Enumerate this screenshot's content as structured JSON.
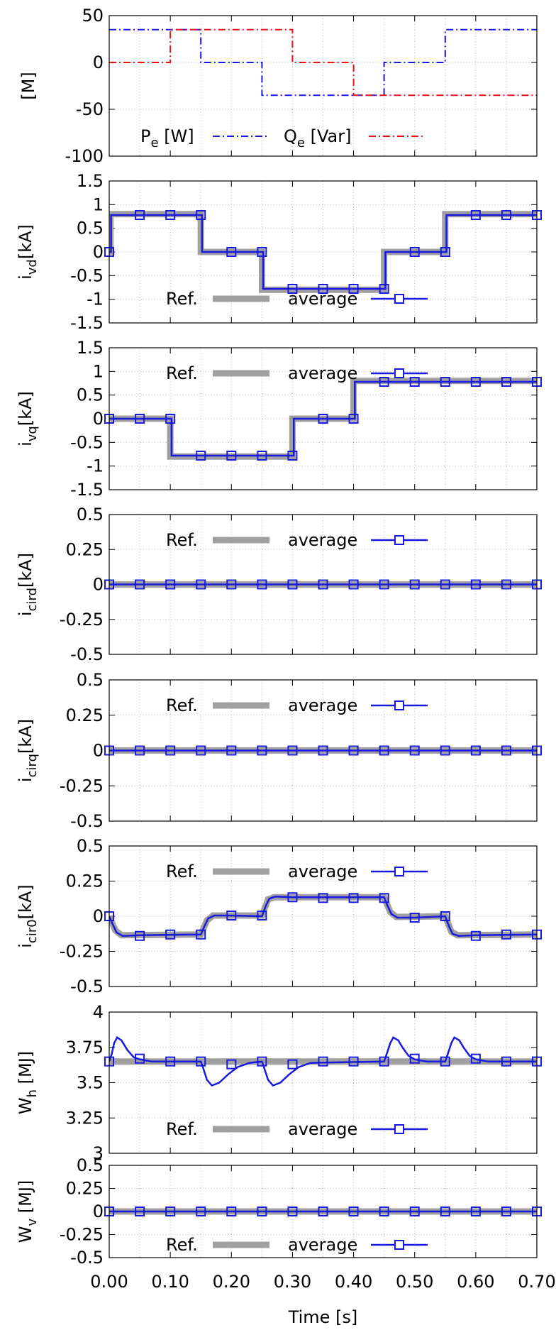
{
  "chart_data": {
    "type": "line",
    "x_title": "Time [s]",
    "x_ticks": [
      "0.00",
      "0.10",
      "0.20",
      "0.30",
      "0.40",
      "0.50",
      "0.60",
      "0.70"
    ],
    "xlim": [
      0,
      0.7
    ],
    "marker_x": [
      0,
      0.05,
      0.1,
      0.15,
      0.2,
      0.25,
      0.3,
      0.35,
      0.4,
      0.45,
      0.5,
      0.55,
      0.6,
      0.65,
      0.7
    ],
    "colors": {
      "blue": "#1a1adf",
      "red": "#e8141a",
      "gray": "#a0a0a0",
      "grid": "#b8b8b8"
    },
    "panels": [
      {
        "id": "power",
        "ylabel": {
          "main": "[M]",
          "sub": ""
        },
        "ylim": [
          -100,
          50
        ],
        "yticks": [
          "50",
          "0",
          "-50",
          "-100"
        ],
        "ytick_values": [
          50,
          0,
          -50,
          -100
        ],
        "legend": {
          "position": "bottom-left",
          "items": [
            "P_e [W]",
            "Q_e [Var]"
          ]
        },
        "legend_parts": [
          {
            "main": "P",
            "sub": "e",
            "rest": " [W]"
          },
          {
            "main": "Q",
            "sub": "e",
            "rest": " [Var]"
          }
        ],
        "series": [
          {
            "name": "P_e [W]",
            "color": "blue",
            "style": "dash-dot",
            "x": [
              0,
              0.15,
              0.15,
              0.25,
              0.25,
              0.45,
              0.45,
              0.55,
              0.55,
              0.7
            ],
            "values": [
              35,
              35,
              0,
              0,
              -35,
              -35,
              0,
              0,
              35,
              35
            ]
          },
          {
            "name": "Q_e [Var]",
            "color": "red",
            "style": "dash-dot",
            "x": [
              0,
              0.1,
              0.1,
              0.3,
              0.3,
              0.4,
              0.4,
              0.7
            ],
            "values": [
              0,
              0,
              35,
              35,
              0,
              0,
              -35,
              -35
            ]
          }
        ]
      },
      {
        "id": "ivd",
        "ylabel": {
          "main": "i",
          "sub": "vd",
          "rest": "[kA]"
        },
        "ylim": [
          -1.5,
          1.5
        ],
        "yticks": [
          "1.5",
          "1",
          "0.5",
          "0",
          "-0.5",
          "-1",
          "-1.5"
        ],
        "ytick_values": [
          1.5,
          1,
          0.5,
          0,
          -0.5,
          -1,
          -1.5
        ],
        "legend": {
          "position": "bottom-center",
          "items": [
            "Ref.",
            "average"
          ]
        },
        "ref": {
          "x": [
            0,
            0.002,
            0.002,
            0.15,
            0.15,
            0.25,
            0.25,
            0.45,
            0.45,
            0.55,
            0.55,
            0.7
          ],
          "values": [
            0,
            0,
            0.8,
            0.8,
            0,
            0,
            -0.8,
            -0.8,
            0,
            0,
            0.8,
            0.8
          ]
        },
        "average": {
          "x": [
            0,
            0.003,
            0.003,
            0.152,
            0.152,
            0.252,
            0.252,
            0.452,
            0.452,
            0.552,
            0.552,
            0.7
          ],
          "values": [
            0,
            0,
            0.78,
            0.78,
            0,
            0,
            -0.78,
            -0.78,
            0,
            0,
            0.78,
            0.78
          ]
        },
        "markers": [
          0,
          0.78,
          0.78,
          0.78,
          0,
          0,
          -0.78,
          -0.78,
          -0.78,
          -0.78,
          0,
          0,
          0.78,
          0.78,
          0.78
        ]
      },
      {
        "id": "ivq",
        "ylabel": {
          "main": "i",
          "sub": "vq",
          "rest": "[kA]"
        },
        "ylim": [
          -1.5,
          1.5
        ],
        "yticks": [
          "1.5",
          "1",
          "0.5",
          "0",
          "-0.5",
          "-1",
          "-1.5"
        ],
        "ytick_values": [
          1.5,
          1,
          0.5,
          0,
          -0.5,
          -1,
          -1.5
        ],
        "legend": {
          "position": "top-center",
          "items": [
            "Ref.",
            "average"
          ]
        },
        "ref": {
          "x": [
            0,
            0.1,
            0.1,
            0.3,
            0.3,
            0.4,
            0.4,
            0.7
          ],
          "values": [
            0,
            0,
            -0.8,
            -0.8,
            0,
            0,
            0.8,
            0.8
          ]
        },
        "average": {
          "x": [
            0,
            0.102,
            0.102,
            0.302,
            0.302,
            0.402,
            0.402,
            0.7
          ],
          "values": [
            0,
            0,
            -0.78,
            -0.78,
            0,
            0,
            0.78,
            0.78
          ]
        },
        "markers": [
          0,
          0,
          0,
          -0.78,
          -0.78,
          -0.78,
          -0.78,
          0,
          0,
          0.78,
          0.78,
          0.78,
          0.78,
          0.78,
          0.78
        ]
      },
      {
        "id": "icird",
        "ylabel": {
          "main": "i",
          "sub": "cird",
          "rest": "[kA]"
        },
        "ylim": [
          -0.5,
          0.5
        ],
        "yticks": [
          "0.5",
          "0.25",
          "0",
          "-0.25",
          "-0.5"
        ],
        "ytick_values": [
          0.5,
          0.25,
          0,
          -0.25,
          -0.5
        ],
        "legend": {
          "position": "top-center",
          "items": [
            "Ref.",
            "average"
          ]
        },
        "ref": {
          "x": [
            0,
            0.7
          ],
          "values": [
            0,
            0
          ]
        },
        "average": {
          "x": [
            0,
            0.7
          ],
          "values": [
            0,
            0
          ]
        },
        "markers": [
          0,
          0,
          0,
          0,
          0,
          0,
          0,
          0,
          0,
          0,
          0,
          0,
          0,
          0,
          0
        ]
      },
      {
        "id": "icirq",
        "ylabel": {
          "main": "i",
          "sub": "cirq",
          "rest": "[kA]"
        },
        "ylim": [
          -0.5,
          0.5
        ],
        "yticks": [
          "0.5",
          "0.25",
          "0",
          "-0.25",
          "-0.5"
        ],
        "ytick_values": [
          0.5,
          0.25,
          0,
          -0.25,
          -0.5
        ],
        "legend": {
          "position": "top-center",
          "items": [
            "Ref.",
            "average"
          ]
        },
        "ref": {
          "x": [
            0,
            0.7
          ],
          "values": [
            0,
            0
          ]
        },
        "average": {
          "x": [
            0,
            0.7
          ],
          "values": [
            0,
            0
          ]
        },
        "markers": [
          0,
          0,
          0,
          0,
          0,
          0,
          0,
          0,
          0,
          0,
          0,
          0,
          0,
          0,
          0
        ]
      },
      {
        "id": "icir0",
        "ylabel": {
          "main": "i",
          "sub": "cir0",
          "rest": "[kA]"
        },
        "ylim": [
          -0.5,
          0.5
        ],
        "yticks": [
          "0.5",
          "0.25",
          "0",
          "-0.25",
          "-0.5"
        ],
        "ytick_values": [
          0.5,
          0.25,
          0,
          -0.25,
          -0.5
        ],
        "legend": {
          "position": "top-center",
          "items": [
            "Ref.",
            "average"
          ]
        },
        "ref": {
          "x": [
            0,
            0.01,
            0.02,
            0.15,
            0.16,
            0.17,
            0.25,
            0.26,
            0.27,
            0.45,
            0.46,
            0.47,
            0.55,
            0.56,
            0.57,
            0.7
          ],
          "values": [
            0,
            -0.1,
            -0.135,
            -0.13,
            -0.03,
            0.005,
            0.005,
            0.12,
            0.135,
            0.135,
            0.03,
            -0.005,
            0,
            -0.11,
            -0.135,
            -0.13
          ]
        },
        "average": {
          "x": [
            0,
            0.005,
            0.012,
            0.022,
            0.05,
            0.15,
            0.156,
            0.162,
            0.172,
            0.2,
            0.25,
            0.256,
            0.262,
            0.272,
            0.3,
            0.45,
            0.456,
            0.462,
            0.472,
            0.5,
            0.55,
            0.556,
            0.562,
            0.572,
            0.6,
            0.7
          ],
          "values": [
            0,
            -0.05,
            -0.115,
            -0.14,
            -0.135,
            -0.13,
            -0.07,
            -0.015,
            0.005,
            0.005,
            0,
            0.07,
            0.125,
            0.14,
            0.135,
            0.135,
            0.07,
            0.015,
            -0.01,
            -0.01,
            0,
            -0.07,
            -0.125,
            -0.14,
            -0.135,
            -0.13
          ]
        },
        "markers": [
          0,
          -0.14,
          -0.13,
          -0.13,
          0.005,
          0.005,
          0.135,
          0.13,
          0.13,
          0.13,
          -0.01,
          0,
          -0.14,
          -0.13,
          -0.13
        ]
      },
      {
        "id": "wh",
        "ylabel": {
          "main": "W",
          "sub": "h",
          "rest": " [MJ]"
        },
        "ylim": [
          3,
          4
        ],
        "yticks": [
          "4",
          "3.75",
          "3.5",
          "3.25",
          "3"
        ],
        "ytick_values": [
          4,
          3.75,
          3.5,
          3.25,
          3
        ],
        "legend": {
          "position": "bottom-center",
          "items": [
            "Ref.",
            "average"
          ]
        },
        "ref": {
          "x": [
            0,
            0.7
          ],
          "values": [
            3.65,
            3.65
          ]
        },
        "average": {
          "x": [
            0,
            0.004,
            0.008,
            0.013,
            0.02,
            0.03,
            0.04,
            0.05,
            0.07,
            0.15,
            0.154,
            0.16,
            0.168,
            0.18,
            0.195,
            0.21,
            0.23,
            0.25,
            0.254,
            0.26,
            0.268,
            0.28,
            0.295,
            0.31,
            0.33,
            0.45,
            0.454,
            0.46,
            0.465,
            0.473,
            0.48,
            0.49,
            0.5,
            0.52,
            0.55,
            0.554,
            0.56,
            0.565,
            0.573,
            0.58,
            0.59,
            0.6,
            0.62,
            0.7
          ],
          "values": [
            3.65,
            3.7,
            3.78,
            3.82,
            3.8,
            3.73,
            3.68,
            3.665,
            3.65,
            3.65,
            3.6,
            3.52,
            3.48,
            3.5,
            3.56,
            3.61,
            3.64,
            3.65,
            3.6,
            3.52,
            3.48,
            3.5,
            3.56,
            3.61,
            3.64,
            3.65,
            3.7,
            3.78,
            3.82,
            3.8,
            3.75,
            3.69,
            3.665,
            3.65,
            3.65,
            3.7,
            3.78,
            3.82,
            3.8,
            3.75,
            3.69,
            3.665,
            3.65,
            3.65
          ]
        },
        "markers": [
          3.65,
          3.67,
          3.65,
          3.65,
          3.63,
          3.65,
          3.63,
          3.65,
          3.65,
          3.65,
          3.67,
          3.65,
          3.67,
          3.65,
          3.65
        ]
      },
      {
        "id": "wv",
        "ylabel": {
          "main": "W",
          "sub": "v",
          "rest": " [MJ]"
        },
        "ylim": [
          -0.5,
          0.5
        ],
        "yticks": [
          "0.5",
          "0.25",
          "0",
          "-0.25",
          "-0.5"
        ],
        "ytick_values": [
          0.5,
          0.25,
          0,
          -0.25,
          -0.5
        ],
        "legend": {
          "position": "bottom-center",
          "items": [
            "Ref.",
            "average"
          ]
        },
        "ref": {
          "x": [
            0,
            0.7
          ],
          "values": [
            0,
            0
          ]
        },
        "average": {
          "x": [
            0,
            0.7
          ],
          "values": [
            0,
            0
          ]
        },
        "markers": [
          0,
          0,
          0,
          0,
          0,
          0,
          0,
          0,
          0,
          0,
          0,
          0,
          0,
          0,
          0
        ]
      }
    ]
  }
}
